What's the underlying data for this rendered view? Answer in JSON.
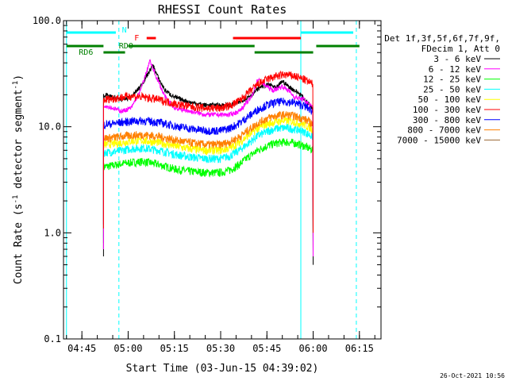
{
  "chart_data": {
    "type": "line",
    "title": "RHESSI Count Rates",
    "xlabel": "Start Time (03-Jun-15 04:39:02)",
    "ylabel_parts": [
      "Count Rate (s",
      "-1",
      " detector segment",
      "-1",
      ")"
    ],
    "yscale": "log",
    "ylim": [
      0.1,
      100.0
    ],
    "xlim": [
      "04:39:02",
      "06:22:00"
    ],
    "yticks": [
      {
        "value": 0.1,
        "label": "0.1"
      },
      {
        "value": 1.0,
        "label": "1.0"
      },
      {
        "value": 10.0,
        "label": "10.0"
      },
      {
        "value": 100.0,
        "label": "100.0"
      }
    ],
    "xticks": [
      {
        "time": "04:45",
        "label": "04:45"
      },
      {
        "time": "05:00",
        "label": "05:00"
      },
      {
        "time": "05:15",
        "label": "05:15"
      },
      {
        "time": "05:30",
        "label": "05:30"
      },
      {
        "time": "05:45",
        "label": "05:45"
      },
      {
        "time": "06:00",
        "label": "06:00"
      },
      {
        "time": "06:15",
        "label": "06:15"
      }
    ],
    "legend": {
      "position": "right",
      "header": [
        "Det 1f,3f,5f,6f,7f,9f,",
        "FDecim 1, Att 0"
      ]
    },
    "series": [
      {
        "name": "3 - 6 keV",
        "color": "#000000",
        "points": [
          [
            "04:52",
            20
          ],
          [
            "04:55",
            19
          ],
          [
            "04:58",
            18
          ],
          [
            "05:01",
            19
          ],
          [
            "05:04",
            24
          ],
          [
            "05:06",
            30
          ],
          [
            "05:08",
            38
          ],
          [
            "05:10",
            28
          ],
          [
            "05:12",
            22
          ],
          [
            "05:15",
            19
          ],
          [
            "05:20",
            17
          ],
          [
            "05:25",
            16
          ],
          [
            "05:30",
            16
          ],
          [
            "05:33",
            16
          ],
          [
            "05:36",
            17
          ],
          [
            "05:40",
            20
          ],
          [
            "05:43",
            24
          ],
          [
            "05:46",
            25
          ],
          [
            "05:48",
            23
          ],
          [
            "05:50",
            27
          ],
          [
            "05:52",
            24
          ],
          [
            "05:54",
            22
          ],
          [
            "05:56",
            20
          ],
          [
            "05:58",
            17
          ],
          [
            "06:00",
            15
          ]
        ]
      },
      {
        "name": "6 - 12 keV",
        "color": "#ff00ff",
        "points": [
          [
            "04:52",
            16
          ],
          [
            "04:55",
            15
          ],
          [
            "04:58",
            14
          ],
          [
            "05:01",
            15
          ],
          [
            "05:04",
            22
          ],
          [
            "05:06",
            33
          ],
          [
            "05:07",
            42
          ],
          [
            "05:09",
            30
          ],
          [
            "05:12",
            19
          ],
          [
            "05:15",
            15
          ],
          [
            "05:20",
            14
          ],
          [
            "05:25",
            13
          ],
          [
            "05:30",
            13
          ],
          [
            "05:33",
            13
          ],
          [
            "05:36",
            14
          ],
          [
            "05:40",
            19
          ],
          [
            "05:42",
            28
          ],
          [
            "05:44",
            25
          ],
          [
            "05:47",
            22
          ],
          [
            "05:50",
            24
          ],
          [
            "05:52",
            22
          ],
          [
            "05:54",
            19
          ],
          [
            "05:57",
            18
          ],
          [
            "06:00",
            15
          ]
        ]
      },
      {
        "name": "12 - 25 keV",
        "color": "#00ff00",
        "points": [
          [
            "04:52",
            4.2
          ],
          [
            "04:55",
            4.3
          ],
          [
            "04:58",
            4.5
          ],
          [
            "05:01",
            4.6
          ],
          [
            "05:05",
            4.7
          ],
          [
            "05:10",
            4.4
          ],
          [
            "05:15",
            4.0
          ],
          [
            "05:20",
            3.8
          ],
          [
            "05:25",
            3.7
          ],
          [
            "05:30",
            3.7
          ],
          [
            "05:33",
            3.9
          ],
          [
            "05:36",
            4.4
          ],
          [
            "05:39",
            5.2
          ],
          [
            "05:42",
            6.0
          ],
          [
            "05:45",
            6.6
          ],
          [
            "05:48",
            7.0
          ],
          [
            "05:51",
            7.2
          ],
          [
            "05:54",
            7.0
          ],
          [
            "05:57",
            6.6
          ],
          [
            "06:00",
            6.0
          ]
        ]
      },
      {
        "name": "25 - 50 keV",
        "color": "#00ffff",
        "points": [
          [
            "04:52",
            5.7
          ],
          [
            "04:55",
            5.8
          ],
          [
            "04:58",
            6.0
          ],
          [
            "05:01",
            6.2
          ],
          [
            "05:05",
            6.3
          ],
          [
            "05:10",
            6.0
          ],
          [
            "05:15",
            5.5
          ],
          [
            "05:20",
            5.2
          ],
          [
            "05:25",
            5.0
          ],
          [
            "05:30",
            5.0
          ],
          [
            "05:33",
            5.3
          ],
          [
            "05:36",
            6.0
          ],
          [
            "05:39",
            7.0
          ],
          [
            "05:42",
            8.2
          ],
          [
            "05:45",
            9.0
          ],
          [
            "05:48",
            9.6
          ],
          [
            "05:51",
            9.8
          ],
          [
            "05:54",
            9.5
          ],
          [
            "05:57",
            9.0
          ],
          [
            "06:00",
            8.0
          ]
        ]
      },
      {
        "name": "50 - 100 keV",
        "color": "#ffff00",
        "points": [
          [
            "04:52",
            6.8
          ],
          [
            "04:55",
            6.9
          ],
          [
            "04:58",
            7.1
          ],
          [
            "05:01",
            7.3
          ],
          [
            "05:05",
            7.4
          ],
          [
            "05:10",
            7.1
          ],
          [
            "05:15",
            6.6
          ],
          [
            "05:20",
            6.2
          ],
          [
            "05:25",
            6.0
          ],
          [
            "05:30",
            6.0
          ],
          [
            "05:33",
            6.3
          ],
          [
            "05:36",
            7.1
          ],
          [
            "05:39",
            8.3
          ],
          [
            "05:42",
            9.6
          ],
          [
            "05:45",
            10.6
          ],
          [
            "05:48",
            11.2
          ],
          [
            "05:51",
            11.4
          ],
          [
            "05:54",
            11.1
          ],
          [
            "05:57",
            10.5
          ],
          [
            "06:00",
            9.4
          ]
        ]
      },
      {
        "name": "100 - 300 keV",
        "color": "#ff0000",
        "points": [
          [
            "04:52",
            18
          ],
          [
            "04:55",
            18.5
          ],
          [
            "04:58",
            19
          ],
          [
            "05:01",
            19.5
          ],
          [
            "05:05",
            19
          ],
          [
            "05:10",
            18
          ],
          [
            "05:15",
            16.5
          ],
          [
            "05:20",
            15.5
          ],
          [
            "05:25",
            15
          ],
          [
            "05:30",
            15
          ],
          [
            "05:33",
            15.8
          ],
          [
            "05:36",
            17.5
          ],
          [
            "05:39",
            21
          ],
          [
            "05:42",
            25
          ],
          [
            "05:45",
            28
          ],
          [
            "05:48",
            30
          ],
          [
            "05:51",
            31
          ],
          [
            "05:54",
            30
          ],
          [
            "05:57",
            28
          ],
          [
            "06:00",
            25
          ]
        ]
      },
      {
        "name": "300 - 800 keV",
        "color": "#0000ff",
        "points": [
          [
            "04:52",
            10.5
          ],
          [
            "04:55",
            10.7
          ],
          [
            "04:58",
            11
          ],
          [
            "05:01",
            11.3
          ],
          [
            "05:05",
            11.4
          ],
          [
            "05:10",
            11
          ],
          [
            "05:15",
            10.2
          ],
          [
            "05:20",
            9.6
          ],
          [
            "05:25",
            9.2
          ],
          [
            "05:30",
            9.2
          ],
          [
            "05:33",
            9.7
          ],
          [
            "05:36",
            10.8
          ],
          [
            "05:39",
            12.5
          ],
          [
            "05:42",
            14.5
          ],
          [
            "05:45",
            16
          ],
          [
            "05:48",
            17
          ],
          [
            "05:51",
            17.3
          ],
          [
            "05:54",
            16.8
          ],
          [
            "05:57",
            15.8
          ],
          [
            "06:00",
            14
          ]
        ]
      },
      {
        "name": "800 - 7000 keV",
        "color": "#ff8000",
        "points": [
          [
            "04:52",
            7.8
          ],
          [
            "04:55",
            7.9
          ],
          [
            "04:58",
            8.1
          ],
          [
            "05:01",
            8.3
          ],
          [
            "05:05",
            8.4
          ],
          [
            "05:10",
            8.1
          ],
          [
            "05:15",
            7.5
          ],
          [
            "05:20",
            7.1
          ],
          [
            "05:25",
            6.8
          ],
          [
            "05:30",
            6.8
          ],
          [
            "05:33",
            7.2
          ],
          [
            "05:36",
            8.0
          ],
          [
            "05:39",
            9.3
          ],
          [
            "05:42",
            10.8
          ],
          [
            "05:45",
            12
          ],
          [
            "05:48",
            12.7
          ],
          [
            "05:51",
            13
          ],
          [
            "05:54",
            12.6
          ],
          [
            "05:57",
            11.9
          ],
          [
            "06:00",
            10.6
          ]
        ]
      },
      {
        "name": "7000 - 15000 keV",
        "color": "#996633",
        "points": []
      }
    ],
    "attenuator_states": {
      "label": "N",
      "color": "#00ffff",
      "segments": [
        [
          "04:40",
          "04:56"
        ],
        [
          "05:56",
          "06:13"
        ]
      ]
    },
    "flare_flags": {
      "label": "F",
      "color": "#ff0000",
      "segments": [
        [
          "05:06",
          "05:09"
        ],
        [
          "05:34",
          "05:56"
        ]
      ]
    },
    "decimation_flags": {
      "labels": [
        "RD6",
        "RD0"
      ],
      "color": "#008000",
      "upper": [
        [
          "04:40",
          "04:52"
        ],
        [
          "05:00",
          "05:41"
        ],
        [
          "06:01",
          "06:15"
        ]
      ],
      "lower": [
        [
          "04:52",
          "04:59"
        ],
        [
          "05:41",
          "06:00"
        ]
      ]
    },
    "vertical_markers": [
      {
        "time": "04:40",
        "style": "solid"
      },
      {
        "time": "04:57",
        "style": "dashed"
      },
      {
        "time": "05:56",
        "style": "solid"
      },
      {
        "time": "06:14",
        "style": "dashed"
      }
    ]
  },
  "timestamp": "26-Oct-2021 10:56"
}
